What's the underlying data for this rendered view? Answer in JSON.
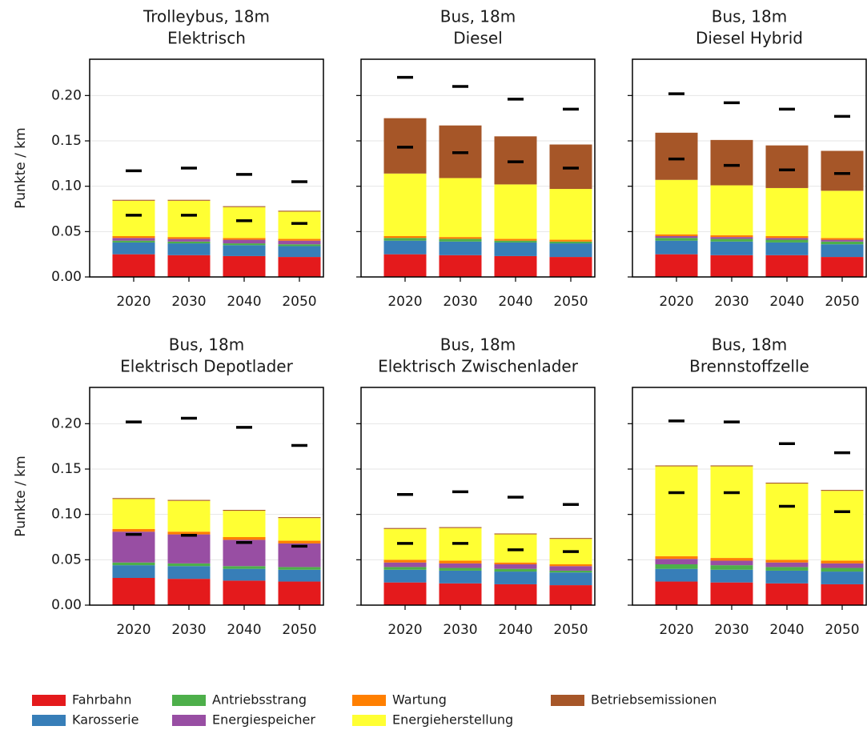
{
  "chart_data": [
    {
      "type": "bar",
      "stacked": true,
      "title": [
        "Trolleybus, 18m",
        "Elektrisch"
      ],
      "ylabel": "Punkte / km",
      "categories": [
        "2020",
        "2030",
        "2040",
        "2050"
      ],
      "ylim": [
        0,
        0.24
      ],
      "yticks": [
        {
          "value": 0,
          "label": "0.00"
        },
        {
          "value": 0.05,
          "label": "0.05"
        },
        {
          "value": 0.1,
          "label": "0.10"
        },
        {
          "value": 0.15,
          "label": "0.15"
        },
        {
          "value": 0.2,
          "label": "0.20"
        }
      ],
      "grid": true,
      "series": [
        {
          "name": "Fahrbahn",
          "color": "#e41a1c",
          "values": [
            0.025,
            0.024,
            0.023,
            0.022
          ]
        },
        {
          "name": "Karosserie",
          "color": "#377eb8",
          "values": [
            0.013,
            0.013,
            0.012,
            0.012
          ]
        },
        {
          "name": "Antriebsstrang",
          "color": "#4daf4a",
          "values": [
            0.002,
            0.002,
            0.002,
            0.002
          ]
        },
        {
          "name": "Energiespeicher",
          "color": "#984ea3",
          "values": [
            0.003,
            0.003,
            0.004,
            0.004
          ]
        },
        {
          "name": "Wartung",
          "color": "#ff7f00",
          "values": [
            0.002,
            0.002,
            0.002,
            0.002
          ]
        },
        {
          "name": "Energieherstellung",
          "color": "#ffff33",
          "values": [
            0.039,
            0.04,
            0.034,
            0.03
          ]
        },
        {
          "name": "Betriebsemissionen",
          "color": "#a65628",
          "values": [
            0.001,
            0.001,
            0.001,
            0.001
          ]
        }
      ],
      "markers": [
        [
          0.068,
          0.117
        ],
        [
          0.068,
          0.12
        ],
        [
          0.062,
          0.113
        ],
        [
          0.059,
          0.105
        ]
      ]
    },
    {
      "type": "bar",
      "stacked": true,
      "title": [
        "Bus, 18m",
        "Diesel"
      ],
      "categories": [
        "2020",
        "2030",
        "2040",
        "2050"
      ],
      "ylim": [
        0,
        0.24
      ],
      "yticks": [
        0,
        0.05,
        0.1,
        0.15,
        0.2
      ],
      "grid": true,
      "series": [
        {
          "name": "Fahrbahn",
          "color": "#e41a1c",
          "values": [
            0.025,
            0.024,
            0.023,
            0.022
          ]
        },
        {
          "name": "Karosserie",
          "color": "#377eb8",
          "values": [
            0.015,
            0.015,
            0.015,
            0.015
          ]
        },
        {
          "name": "Antriebsstrang",
          "color": "#4daf4a",
          "values": [
            0.003,
            0.003,
            0.002,
            0.002
          ]
        },
        {
          "name": "Energiespeicher",
          "color": "#984ea3",
          "values": [
            0,
            0,
            0,
            0
          ]
        },
        {
          "name": "Wartung",
          "color": "#ff7f00",
          "values": [
            0.002,
            0.002,
            0.002,
            0.002
          ]
        },
        {
          "name": "Energieherstellung",
          "color": "#ffff33",
          "values": [
            0.069,
            0.065,
            0.06,
            0.056
          ]
        },
        {
          "name": "Betriebsemissionen",
          "color": "#a65628",
          "values": [
            0.061,
            0.058,
            0.053,
            0.049
          ]
        }
      ],
      "markers": [
        [
          0.143,
          0.22
        ],
        [
          0.137,
          0.21
        ],
        [
          0.127,
          0.196
        ],
        [
          0.12,
          0.185
        ]
      ]
    },
    {
      "type": "bar",
      "stacked": true,
      "title": [
        "Bus, 18m",
        "Diesel Hybrid"
      ],
      "categories": [
        "2020",
        "2030",
        "2040",
        "2050"
      ],
      "ylim": [
        0,
        0.24
      ],
      "yticks": [
        0,
        0.05,
        0.1,
        0.15,
        0.2
      ],
      "grid": true,
      "series": [
        {
          "name": "Fahrbahn",
          "color": "#e41a1c",
          "values": [
            0.025,
            0.024,
            0.024,
            0.022
          ]
        },
        {
          "name": "Karosserie",
          "color": "#377eb8",
          "values": [
            0.015,
            0.015,
            0.014,
            0.014
          ]
        },
        {
          "name": "Antriebsstrang",
          "color": "#4daf4a",
          "values": [
            0.003,
            0.003,
            0.003,
            0.003
          ]
        },
        {
          "name": "Energiespeicher",
          "color": "#984ea3",
          "values": [
            0.002,
            0.002,
            0.002,
            0.002
          ]
        },
        {
          "name": "Wartung",
          "color": "#ff7f00",
          "values": [
            0.002,
            0.002,
            0.002,
            0.002
          ]
        },
        {
          "name": "Energieherstellung",
          "color": "#ffff33",
          "values": [
            0.06,
            0.055,
            0.053,
            0.052
          ]
        },
        {
          "name": "Betriebsemissionen",
          "color": "#a65628",
          "values": [
            0.052,
            0.05,
            0.047,
            0.044
          ]
        }
      ],
      "markers": [
        [
          0.13,
          0.202
        ],
        [
          0.123,
          0.192
        ],
        [
          0.118,
          0.185
        ],
        [
          0.114,
          0.177
        ]
      ]
    },
    {
      "type": "bar",
      "stacked": true,
      "title": [
        "Bus, 18m",
        "Elektrisch Depotlader"
      ],
      "ylabel": "Punkte / km",
      "categories": [
        "2020",
        "2030",
        "2040",
        "2050"
      ],
      "ylim": [
        0,
        0.24
      ],
      "yticks": [
        {
          "value": 0,
          "label": "0.00"
        },
        {
          "value": 0.05,
          "label": "0.05"
        },
        {
          "value": 0.1,
          "label": "0.10"
        },
        {
          "value": 0.15,
          "label": "0.15"
        },
        {
          "value": 0.2,
          "label": "0.20"
        }
      ],
      "grid": true,
      "series": [
        {
          "name": "Fahrbahn",
          "color": "#e41a1c",
          "values": [
            0.03,
            0.029,
            0.027,
            0.026
          ]
        },
        {
          "name": "Karosserie",
          "color": "#377eb8",
          "values": [
            0.014,
            0.014,
            0.013,
            0.013
          ]
        },
        {
          "name": "Antriebsstrang",
          "color": "#4daf4a",
          "values": [
            0.003,
            0.003,
            0.003,
            0.003
          ]
        },
        {
          "name": "Energiespeicher",
          "color": "#984ea3",
          "values": [
            0.034,
            0.032,
            0.029,
            0.026
          ]
        },
        {
          "name": "Wartung",
          "color": "#ff7f00",
          "values": [
            0.003,
            0.003,
            0.003,
            0.003
          ]
        },
        {
          "name": "Energieherstellung",
          "color": "#ffff33",
          "values": [
            0.033,
            0.034,
            0.029,
            0.025
          ]
        },
        {
          "name": "Betriebsemissionen",
          "color": "#a65628",
          "values": [
            0.001,
            0.001,
            0.001,
            0.001
          ]
        }
      ],
      "markers": [
        [
          0.078,
          0.202
        ],
        [
          0.077,
          0.206
        ],
        [
          0.069,
          0.196
        ],
        [
          0.065,
          0.176
        ]
      ]
    },
    {
      "type": "bar",
      "stacked": true,
      "title": [
        "Bus, 18m",
        "Elektrisch Zwischenlader"
      ],
      "categories": [
        "2020",
        "2030",
        "2040",
        "2050"
      ],
      "ylim": [
        0,
        0.24
      ],
      "yticks": [
        0,
        0.05,
        0.1,
        0.15,
        0.2
      ],
      "grid": true,
      "series": [
        {
          "name": "Fahrbahn",
          "color": "#e41a1c",
          "values": [
            0.025,
            0.024,
            0.023,
            0.022
          ]
        },
        {
          "name": "Karosserie",
          "color": "#377eb8",
          "values": [
            0.014,
            0.014,
            0.014,
            0.014
          ]
        },
        {
          "name": "Antriebsstrang",
          "color": "#4daf4a",
          "values": [
            0.003,
            0.003,
            0.003,
            0.002
          ]
        },
        {
          "name": "Energiespeicher",
          "color": "#984ea3",
          "values": [
            0.005,
            0.005,
            0.005,
            0.005
          ]
        },
        {
          "name": "Wartung",
          "color": "#ff7f00",
          "values": [
            0.003,
            0.003,
            0.002,
            0.002
          ]
        },
        {
          "name": "Energieherstellung",
          "color": "#ffff33",
          "values": [
            0.034,
            0.036,
            0.031,
            0.028
          ]
        },
        {
          "name": "Betriebsemissionen",
          "color": "#a65628",
          "values": [
            0.001,
            0.001,
            0.001,
            0.001
          ]
        }
      ],
      "markers": [
        [
          0.068,
          0.122
        ],
        [
          0.068,
          0.125
        ],
        [
          0.061,
          0.119
        ],
        [
          0.059,
          0.111
        ]
      ]
    },
    {
      "type": "bar",
      "stacked": true,
      "title": [
        "Bus, 18m",
        "Brennstoffzelle"
      ],
      "categories": [
        "2020",
        "2030",
        "2040",
        "2050"
      ],
      "ylim": [
        0,
        0.24
      ],
      "yticks": [
        0,
        0.05,
        0.1,
        0.15,
        0.2
      ],
      "grid": true,
      "series": [
        {
          "name": "Fahrbahn",
          "color": "#e41a1c",
          "values": [
            0.026,
            0.025,
            0.024,
            0.023
          ]
        },
        {
          "name": "Karosserie",
          "color": "#377eb8",
          "values": [
            0.014,
            0.014,
            0.014,
            0.014
          ]
        },
        {
          "name": "Antriebsstrang",
          "color": "#4daf4a",
          "values": [
            0.005,
            0.005,
            0.004,
            0.004
          ]
        },
        {
          "name": "Energiespeicher",
          "color": "#984ea3",
          "values": [
            0.006,
            0.005,
            0.005,
            0.005
          ]
        },
        {
          "name": "Wartung",
          "color": "#ff7f00",
          "values": [
            0.003,
            0.003,
            0.003,
            0.003
          ]
        },
        {
          "name": "Energieherstellung",
          "color": "#ffff33",
          "values": [
            0.099,
            0.101,
            0.084,
            0.077
          ]
        },
        {
          "name": "Betriebsemissionen",
          "color": "#a65628",
          "values": [
            0.001,
            0.001,
            0.001,
            0.001
          ]
        }
      ],
      "markers": [
        [
          0.124,
          0.203
        ],
        [
          0.124,
          0.202
        ],
        [
          0.109,
          0.178
        ],
        [
          0.103,
          0.168
        ]
      ]
    }
  ]
}
